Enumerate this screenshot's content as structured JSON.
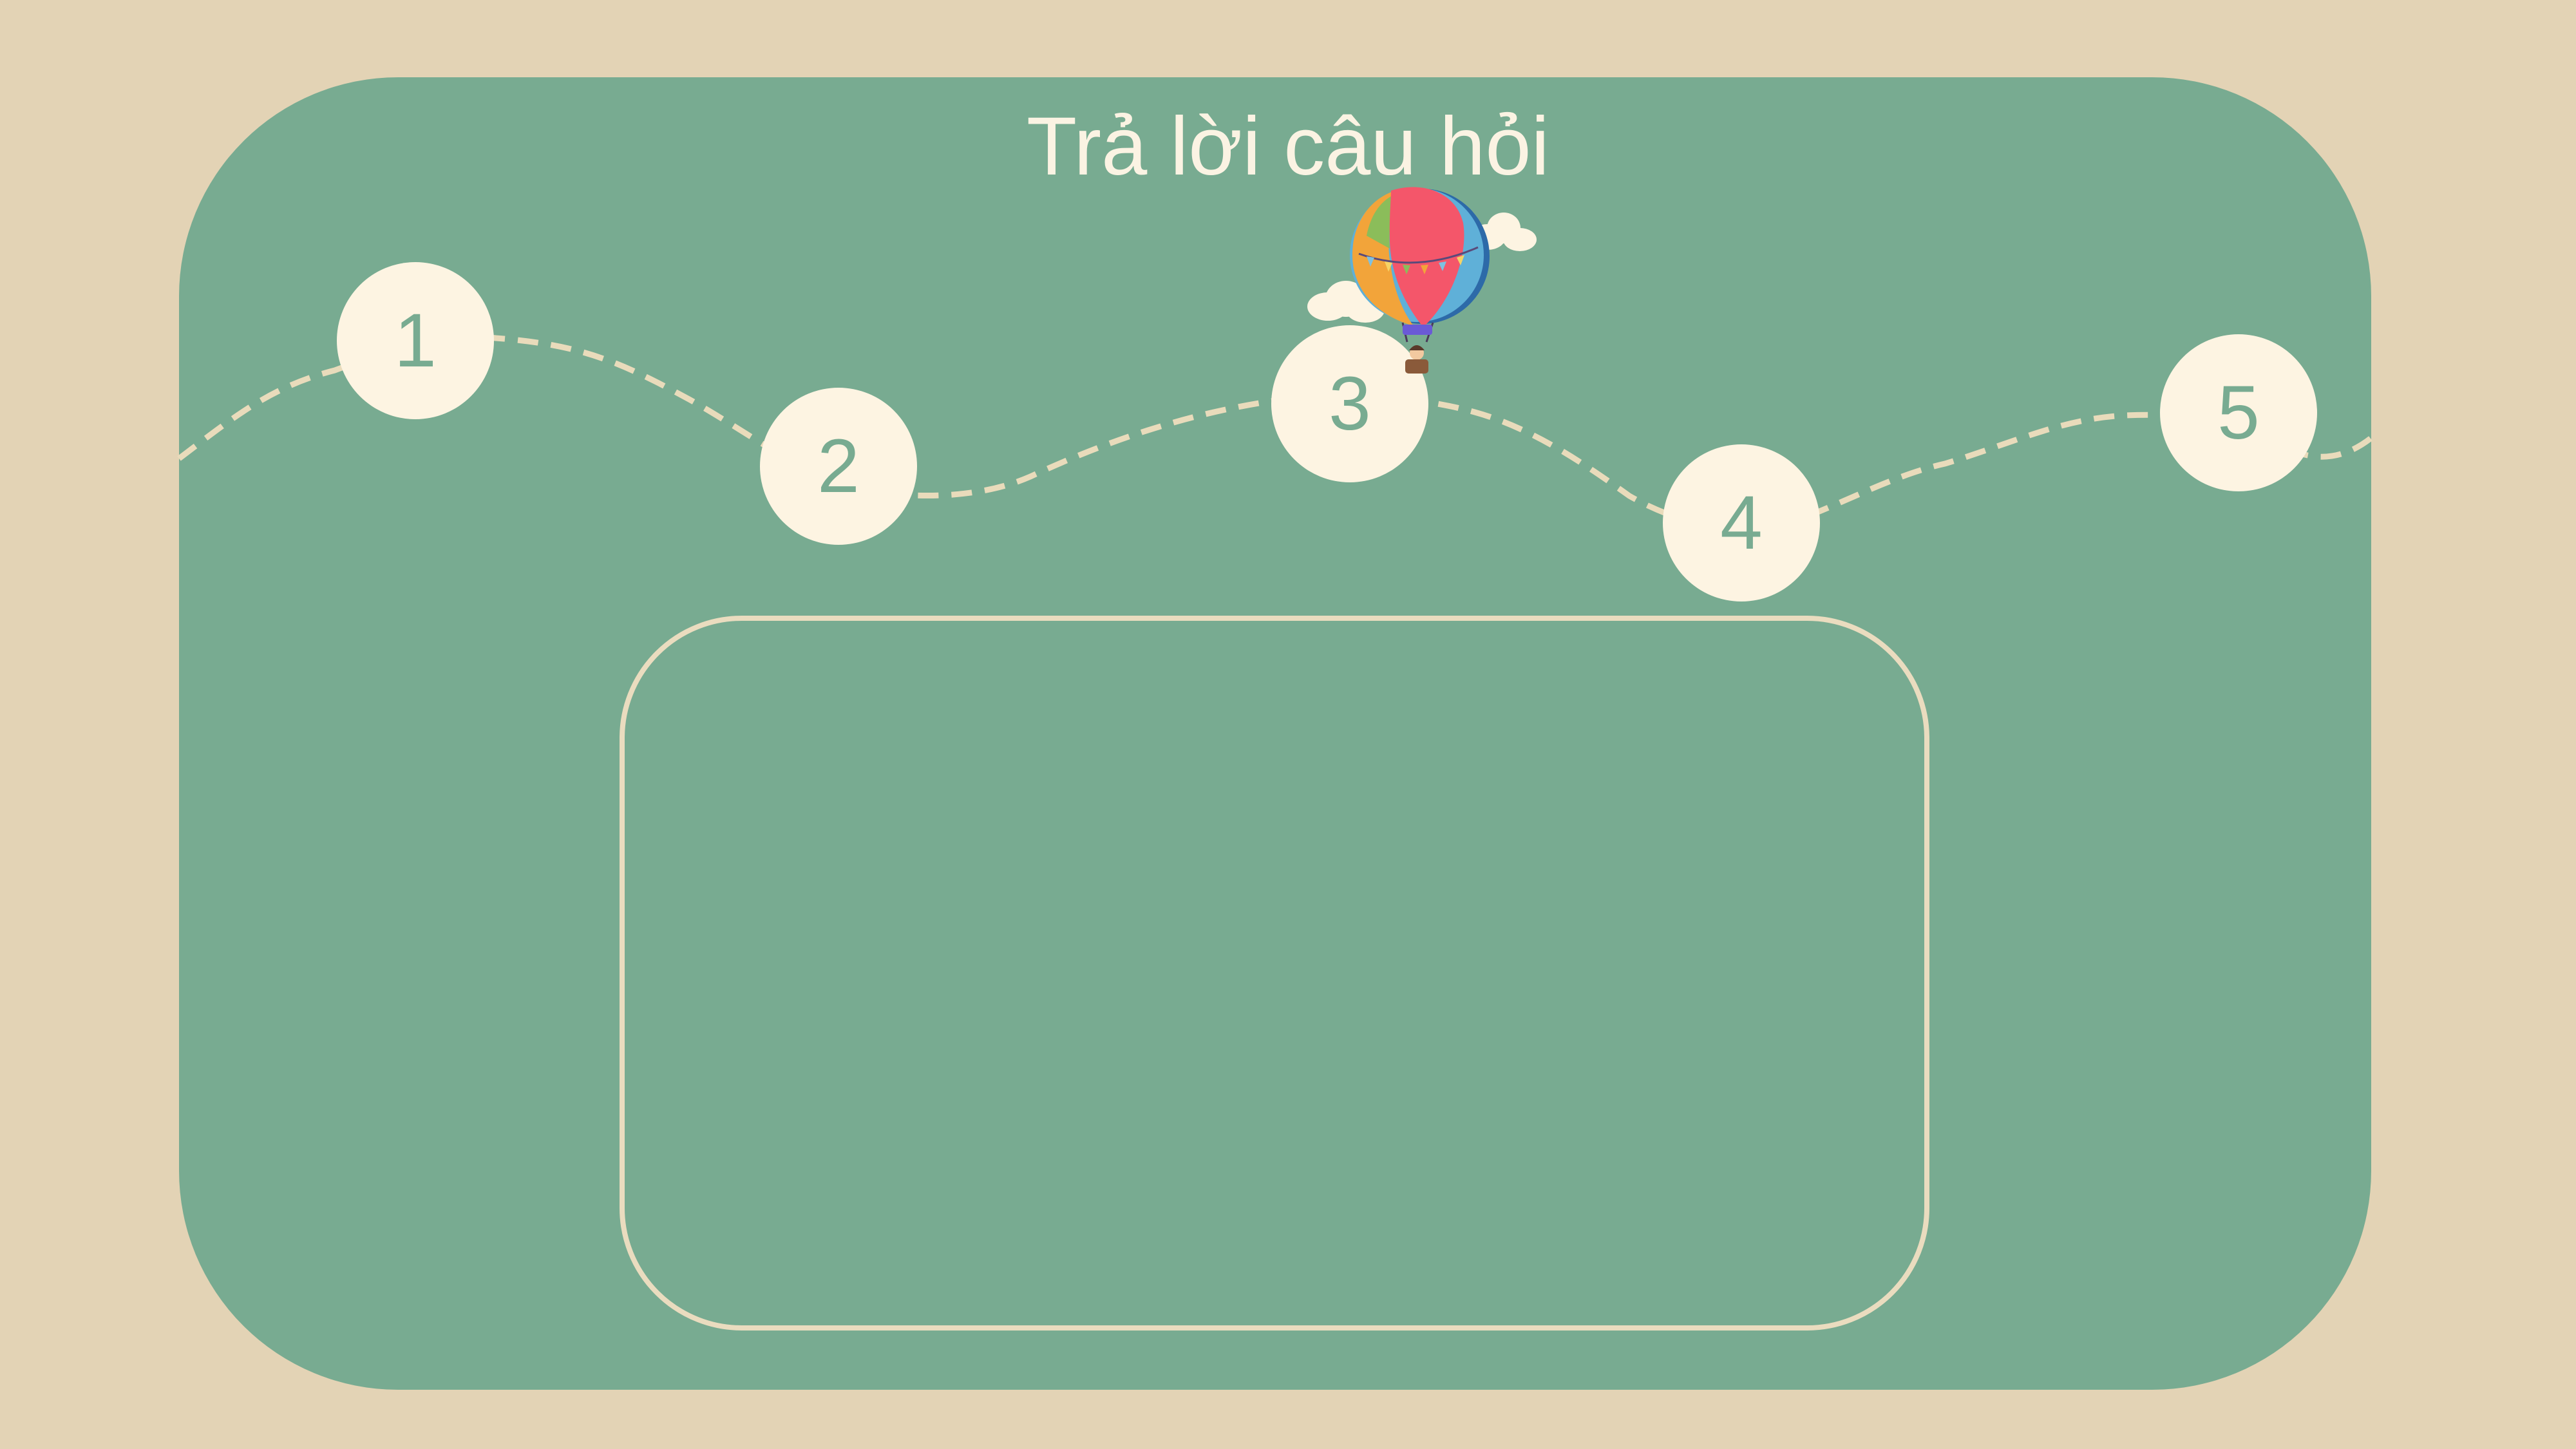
{
  "slide": {
    "title": "Trả lời câu hỏi"
  },
  "steps": [
    {
      "label": "1"
    },
    {
      "label": "2"
    },
    {
      "label": "3"
    },
    {
      "label": "4"
    },
    {
      "label": "5"
    }
  ],
  "answer_box": {
    "text": ""
  },
  "decoration": {
    "balloon_icon": "hot-air-balloon-icon",
    "cloud_icon": "cloud-icon"
  },
  "colors": {
    "background": "#e3d3b5",
    "board": "#78ab91",
    "cream": "#fdf4e2",
    "dashed_path": "#e9dbbb",
    "balloon_red": "#f4566a",
    "balloon_orange": "#f2a43a",
    "balloon_blue": "#5fb0d8"
  }
}
